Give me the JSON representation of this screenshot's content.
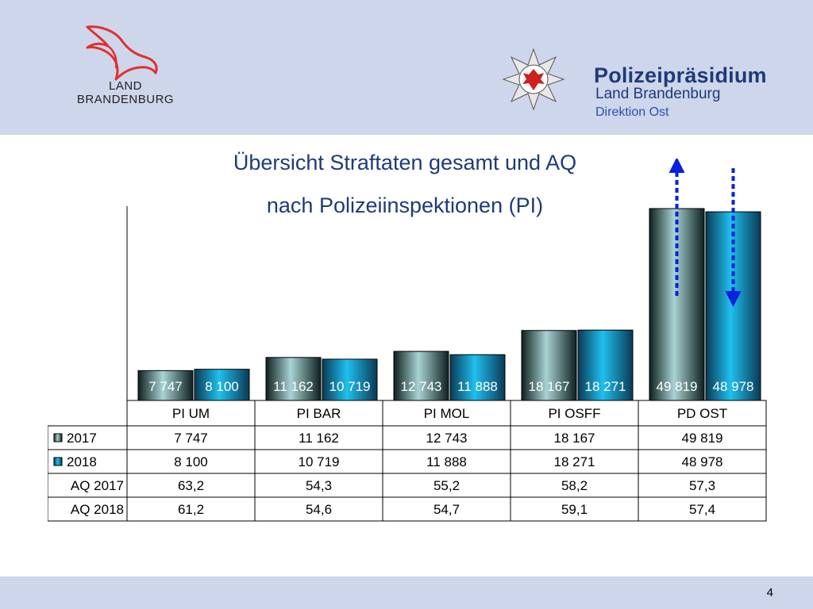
{
  "header": {
    "land_logo_lines": [
      "LAND",
      "BRANDENBURG"
    ],
    "org_title": "Polizeipräsidium",
    "org_subtitle": "Land Brandenburg",
    "org_division": "Direktion Ost"
  },
  "title_lines": [
    "Übersicht Straftaten gesamt und AQ",
    "nach Polizeiinspektionen (PI)"
  ],
  "footer": {
    "page_number": "4"
  },
  "colors": {
    "header_bg": "#cdd6ea",
    "series_2017": "#9ec9c9",
    "series_2018": "#1fb8e0",
    "arrow": "#0a1fe0",
    "title": "#1f3a7a"
  },
  "chart_data": {
    "type": "bar",
    "categories": [
      "PI UM",
      "PI BAR",
      "PI MOL",
      "PI OSFF",
      "PD OST"
    ],
    "series": [
      {
        "name": "2017",
        "values": [
          7747,
          11162,
          12743,
          18167,
          49819
        ],
        "labels": [
          "7 747",
          "11 162",
          "12 743",
          "18 167",
          "49 819"
        ]
      },
      {
        "name": "2018",
        "values": [
          8100,
          10719,
          11888,
          18271,
          48978
        ],
        "labels": [
          "8 100",
          "10 719",
          "11 888",
          "18 271",
          "48 978"
        ]
      }
    ],
    "table_rows": [
      {
        "name": "AQ 2017",
        "values": [
          "63,2",
          "54,3",
          "55,2",
          "58,2",
          "57,3"
        ]
      },
      {
        "name": "AQ 2018",
        "values": [
          "61,2",
          "54,6",
          "54,7",
          "59,1",
          "57,4"
        ]
      }
    ],
    "annotations": [
      {
        "category": "PD OST",
        "series": "2017",
        "direction": "up"
      },
      {
        "category": "PD OST",
        "series": "2018",
        "direction": "down"
      }
    ],
    "legend": "data-table",
    "grid": false
  }
}
